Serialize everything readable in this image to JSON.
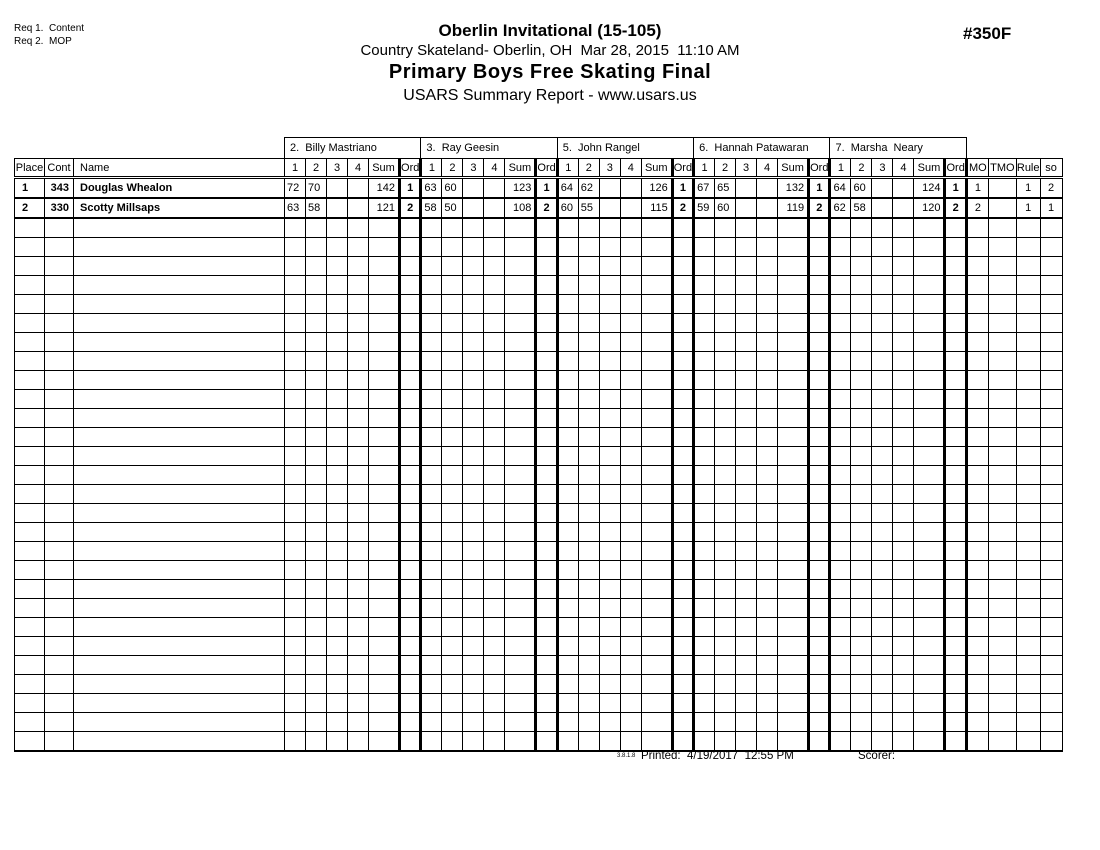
{
  "page": {
    "req1": "Req 1.  Content\nReq 2.  MOP",
    "title": "Oberlin Invitational (15-105)",
    "venue_date": "Country Skateland- Oberlin, OH  Mar 28, 2015  11:10 AM",
    "event_name": "Primary Boys Free Skating Final",
    "report_name": "USARS Summary Report - www.usars.us",
    "event_number": "#350F"
  },
  "table": {
    "left_columns": [
      "Place",
      "Cont",
      "Name"
    ],
    "judge_score_columns": [
      "1",
      "2",
      "3",
      "4",
      "Sum",
      "Ord"
    ],
    "judges": [
      "2.  Billy Mastriano",
      "3.  Ray Geesin",
      "5.  John Rangel",
      "6.  Hannah Patawaran",
      "7.  Marsha  Neary"
    ],
    "right_columns": [
      "MO",
      "TMO",
      "Rule",
      "so"
    ],
    "skaters": [
      {
        "place": "1",
        "cont": "343",
        "name": "Douglas Whealon",
        "judge_scores": [
          [
            "72",
            "70",
            "",
            "",
            "142",
            "1"
          ],
          [
            "63",
            "60",
            "",
            "",
            "123",
            "1"
          ],
          [
            "64",
            "62",
            "",
            "",
            "126",
            "1"
          ],
          [
            "67",
            "65",
            "",
            "",
            "132",
            "1"
          ],
          [
            "64",
            "60",
            "",
            "",
            "124",
            "1"
          ]
        ],
        "stats": [
          "1",
          "",
          "1",
          "2"
        ]
      },
      {
        "place": "2",
        "cont": "330",
        "name": "Scotty Millsaps",
        "judge_scores": [
          [
            "63",
            "58",
            "",
            "",
            "121",
            "2"
          ],
          [
            "58",
            "50",
            "",
            "",
            "108",
            "2"
          ],
          [
            "60",
            "55",
            "",
            "",
            "115",
            "2"
          ],
          [
            "59",
            "60",
            "",
            "",
            "119",
            "2"
          ],
          [
            "62",
            "58",
            "",
            "",
            "120",
            "2"
          ]
        ],
        "stats": [
          "2",
          "",
          "1",
          "1"
        ]
      }
    ],
    "empty_rows": 28
  },
  "footer": {
    "version": "3.8.1.8",
    "printed": "Printed:  4/19/2017  12:55 PM",
    "scorer": "Scorer:"
  }
}
